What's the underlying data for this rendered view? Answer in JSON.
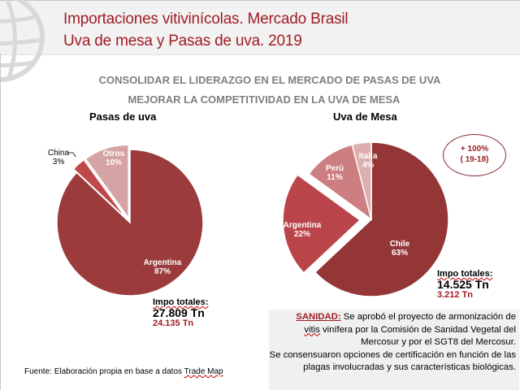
{
  "header": {
    "title_line1": "Importaciones vitivinícolas. Mercado Brasil",
    "title_line2": "Uva de mesa y Pasas de uva. 2019",
    "accent_color": "#a01c24"
  },
  "subtitles": [
    "CONSOLIDAR EL  LIDERAZGO EN EL MERCADO DE PASAS DE UVA",
    "MEJORAR LA COMPETITIVIDAD EN LA UVA DE MESA"
  ],
  "chart_data": [
    {
      "type": "pie",
      "title": "Pasas de uva",
      "categories": [
        "Argentina",
        "China",
        "Otros"
      ],
      "values": [
        87,
        3,
        10
      ],
      "labels": [
        "87%",
        "3%",
        "10%"
      ],
      "colors": [
        "#9b3b3b",
        "#c0484a",
        "#d6a3a4"
      ],
      "exploded": [
        "China",
        "Otros"
      ],
      "totals": {
        "label": "Impo totales:",
        "total": "27.809 Tn",
        "secondary": "24.135 Tn"
      }
    },
    {
      "type": "pie",
      "title": "Uva de Mesa",
      "categories": [
        "Chile",
        "Argentina",
        "Perú",
        "Italia"
      ],
      "values": [
        63,
        22,
        11,
        4
      ],
      "labels": [
        "63%",
        "22%",
        "11%",
        "4%"
      ],
      "colors": [
        "#943636",
        "#b9454a",
        "#cc7e80",
        "#dcaeae"
      ],
      "exploded": [
        "Argentina"
      ],
      "totals": {
        "label": "Impo totales:",
        "total": "14.525 Tn",
        "secondary": "3.212 Tn"
      }
    }
  ],
  "badge": {
    "line1": "+ 100%",
    "line2": "( 19-18)"
  },
  "note": {
    "heading": "SANIDAD:",
    "text1": " Se aprobó el proyecto de armonización de",
    "word_vitis": "vitis",
    "text2": " vinífera por la  Comisión de Sanidad Vegetal del Mercosur y por el SGT8 del Mercosur.",
    "text3": "Se consensuaron opciones de certificación en función de las plagas involucradas y sus características biológicas."
  },
  "source": {
    "prefix": "Fuente: Elaboración propia en base a datos ",
    "link": "Trade Map"
  }
}
